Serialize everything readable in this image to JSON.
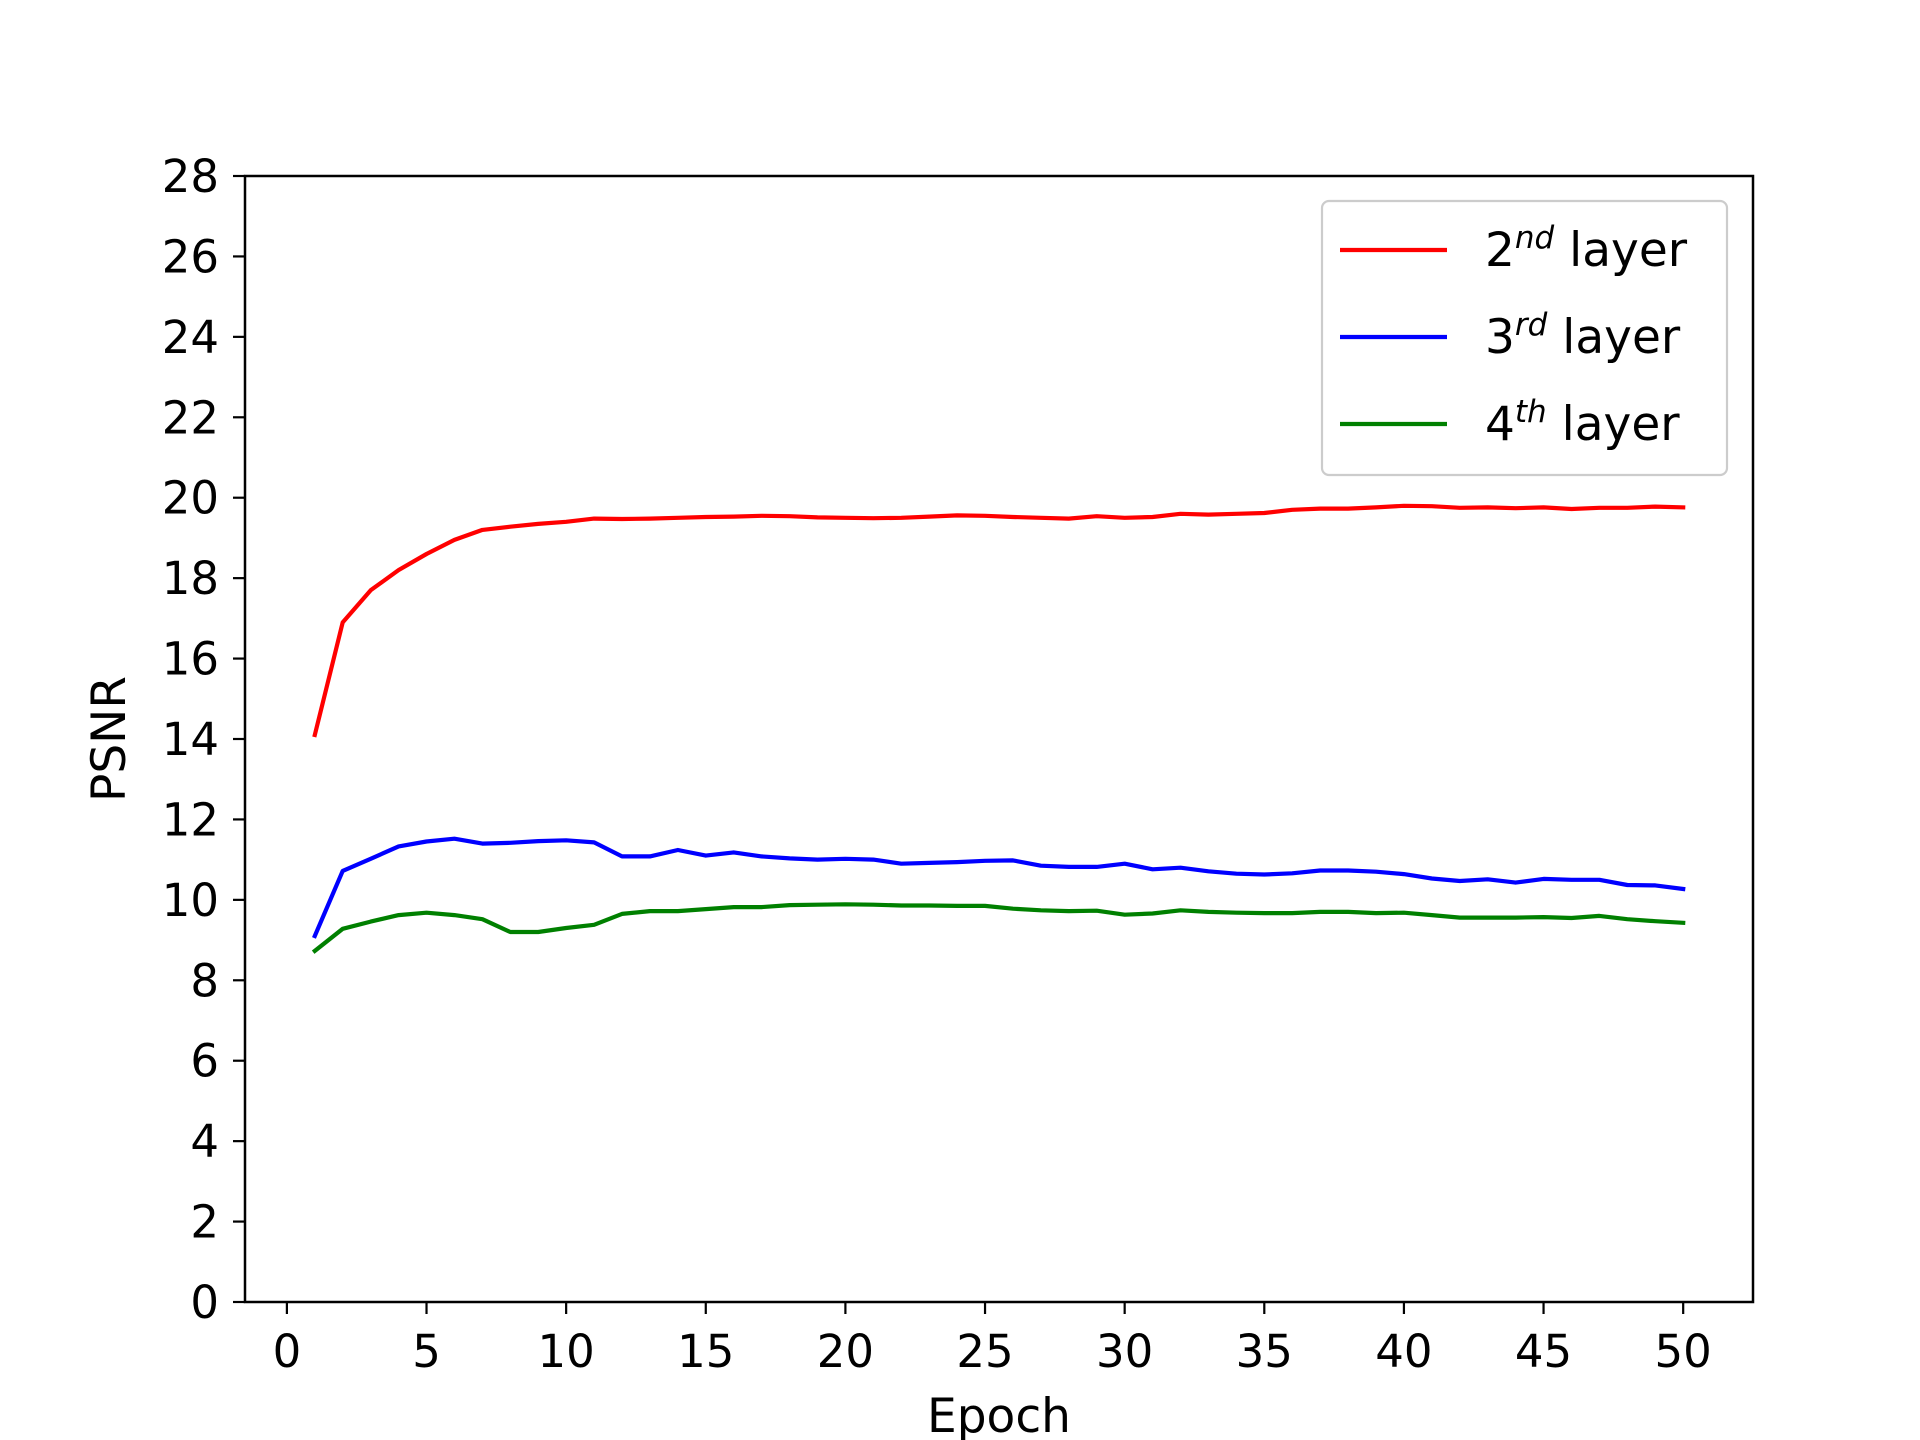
{
  "chart_data": {
    "type": "line",
    "xlabel": "Epoch",
    "ylabel": "PSNR",
    "xlim": [
      -1.5,
      52.5
    ],
    "ylim": [
      0,
      28
    ],
    "xticks": [
      0,
      5,
      10,
      15,
      20,
      25,
      30,
      35,
      40,
      45,
      50
    ],
    "yticks": [
      0,
      2,
      4,
      6,
      8,
      10,
      12,
      14,
      16,
      18,
      20,
      22,
      24,
      26,
      28
    ],
    "grid": false,
    "legend_position": "top-right",
    "x": [
      1,
      2,
      3,
      4,
      5,
      6,
      7,
      8,
      9,
      10,
      11,
      12,
      13,
      14,
      15,
      16,
      17,
      18,
      19,
      20,
      21,
      22,
      23,
      24,
      25,
      26,
      27,
      28,
      29,
      30,
      31,
      32,
      33,
      34,
      35,
      36,
      37,
      38,
      39,
      40,
      41,
      42,
      43,
      44,
      45,
      46,
      47,
      48,
      49,
      50
    ],
    "series": [
      {
        "name": "2nd layer",
        "label_base": "2",
        "label_sup": "nd",
        "label_rest": " layer",
        "color": "#ff0000",
        "values": [
          14.1,
          16.9,
          17.7,
          18.2,
          18.6,
          18.95,
          19.2,
          19.28,
          19.35,
          19.4,
          19.48,
          19.47,
          19.48,
          19.5,
          19.52,
          19.53,
          19.55,
          19.54,
          19.51,
          19.5,
          19.49,
          19.5,
          19.53,
          19.56,
          19.55,
          19.52,
          19.5,
          19.48,
          19.54,
          19.5,
          19.52,
          19.6,
          19.58,
          19.6,
          19.62,
          19.7,
          19.73,
          19.73,
          19.76,
          19.8,
          19.79,
          19.75,
          19.76,
          19.74,
          19.76,
          19.72,
          19.75,
          19.75,
          19.78,
          19.76
        ]
      },
      {
        "name": "3rd layer",
        "label_base": "3",
        "label_sup": "rd",
        "label_rest": " layer",
        "color": "#0000ff",
        "values": [
          9.1,
          10.72,
          11.02,
          11.33,
          11.45,
          11.52,
          11.4,
          11.42,
          11.46,
          11.48,
          11.43,
          11.08,
          11.08,
          11.24,
          11.1,
          11.18,
          11.08,
          11.03,
          11.0,
          11.02,
          11.0,
          10.9,
          10.92,
          10.94,
          10.97,
          10.98,
          10.85,
          10.82,
          10.82,
          10.9,
          10.76,
          10.8,
          10.71,
          10.65,
          10.63,
          10.66,
          10.73,
          10.73,
          10.7,
          10.64,
          10.53,
          10.47,
          10.51,
          10.43,
          10.52,
          10.5,
          10.5,
          10.37,
          10.36,
          10.27
        ]
      },
      {
        "name": "4th layer",
        "label_base": "4",
        "label_sup": "th",
        "label_rest": " layer",
        "color": "#008000",
        "values": [
          8.73,
          9.28,
          9.46,
          9.62,
          9.68,
          9.62,
          9.52,
          9.2,
          9.2,
          9.3,
          9.38,
          9.65,
          9.72,
          9.72,
          9.77,
          9.82,
          9.82,
          9.87,
          9.88,
          9.89,
          9.88,
          9.86,
          9.86,
          9.85,
          9.85,
          9.78,
          9.74,
          9.72,
          9.73,
          9.63,
          9.66,
          9.74,
          9.7,
          9.68,
          9.67,
          9.67,
          9.7,
          9.7,
          9.67,
          9.68,
          9.62,
          9.56,
          9.56,
          9.56,
          9.57,
          9.55,
          9.6,
          9.52,
          9.47,
          9.43
        ]
      }
    ]
  }
}
